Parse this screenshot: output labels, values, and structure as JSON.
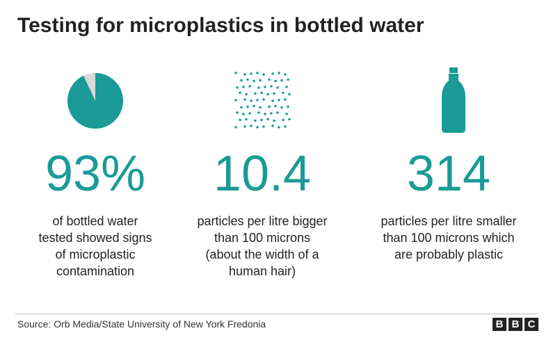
{
  "title": "Testing for microplastics in bottled water",
  "stats": [
    {
      "value": 93,
      "value_label": "93%",
      "description": [
        "of bottled water",
        "tested showed signs",
        "of microplastic",
        "contamination"
      ]
    },
    {
      "value_label": "10.4",
      "description": [
        "particles per litre bigger",
        "than 100 microns",
        "(about the width of a",
        "human hair)"
      ]
    },
    {
      "value_label": "314",
      "description": [
        "particles per litre smaller",
        "than 100 microns which",
        "are probably plastic"
      ]
    }
  ],
  "source": "Source: Orb Media/State University of New York Fredonia",
  "logo": [
    "B",
    "B",
    "C"
  ]
}
